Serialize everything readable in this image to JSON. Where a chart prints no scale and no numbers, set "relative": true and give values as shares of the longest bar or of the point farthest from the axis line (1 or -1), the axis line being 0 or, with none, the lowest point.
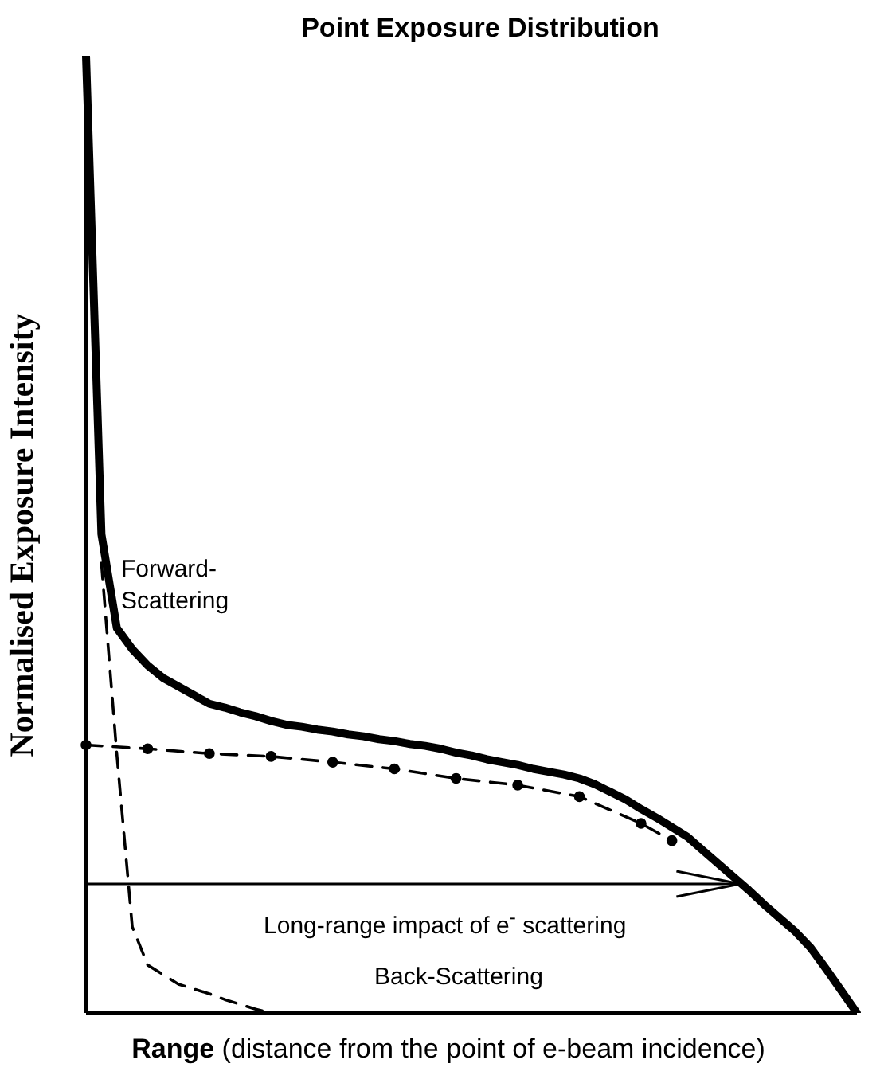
{
  "chart_data": {
    "type": "line",
    "title": "Point Exposure Distribution",
    "xlabel": "Range (distance from the point of e-beam incidence)",
    "ylabel": "Normalised Exposure Intensity",
    "relative": true,
    "tick_labels": false,
    "legend": false,
    "grid": false,
    "categories": [
      null,
      null,
      null,
      null,
      null,
      null,
      null,
      null,
      null,
      null,
      null,
      null,
      null,
      null,
      null,
      null,
      null,
      null,
      null,
      null,
      null,
      null,
      null,
      null,
      null,
      null,
      null,
      null,
      null,
      null,
      null,
      null,
      null,
      null,
      null,
      null,
      null,
      null,
      null,
      null,
      null,
      null,
      null,
      null,
      null,
      null,
      null,
      null,
      null,
      null,
      null
    ],
    "series": [
      {
        "color": "#000000",
        "line_style": "solid",
        "marker": "none",
        "values": [
          1,
          0.5,
          0.402,
          0.38,
          0.363,
          0.35,
          0.341,
          0.332,
          0.323,
          0.319,
          0.314,
          0.31,
          0.305,
          0.301,
          0.299,
          0.296,
          0.294,
          0.291,
          0.289,
          0.286,
          0.284,
          0.281,
          0.279,
          0.276,
          0.272,
          0.269,
          0.265,
          0.262,
          0.259,
          0.255,
          0.252,
          0.249,
          0.245,
          0.239,
          0.231,
          0.223,
          0.213,
          0.204,
          0.194,
          0.184,
          0.17,
          0.156,
          0.142,
          0.128,
          0.113,
          0.099,
          0.085,
          0.068,
          0.046,
          0.023,
          0
        ]
      },
      {
        "color": "#000000",
        "line_style": "dashed",
        "marker": "none",
        "values": [
          null,
          0.47,
          0.27,
          0.09,
          0.05,
          0.04,
          0.03,
          0.025,
          0.02,
          0.014,
          0.009,
          0.004,
          0,
          null,
          null,
          null,
          null,
          null,
          null,
          null,
          null,
          null,
          null,
          null,
          null,
          null,
          null,
          null,
          null,
          null,
          null,
          null,
          null,
          null,
          null,
          null,
          null,
          null,
          null,
          null,
          null,
          null,
          null,
          null,
          null,
          null,
          null,
          null,
          null,
          null,
          null
        ]
      },
      {
        "color": "#000000",
        "line_style": "dashed",
        "marker": "circle",
        "values": [
          0.28,
          null,
          null,
          null,
          0.276,
          null,
          null,
          null,
          0.271,
          null,
          null,
          null,
          0.268,
          null,
          null,
          null,
          0.262,
          null,
          null,
          null,
          0.255,
          null,
          null,
          null,
          0.245,
          null,
          null,
          null,
          0.238,
          null,
          null,
          null,
          0.226,
          null,
          null,
          null,
          0.198,
          null,
          0.18,
          null,
          null,
          null,
          null,
          null,
          null,
          null,
          null,
          null,
          null,
          null,
          null
        ]
      }
    ],
    "ref_lines": [
      {
        "axis": "y",
        "value": 0.136,
        "label": "Long-range impact of e$^{-}$ scattering",
        "color": "#000000"
      }
    ],
    "annotations": [
      "Forward-Scattering",
      "Back-Scattering"
    ]
  }
}
